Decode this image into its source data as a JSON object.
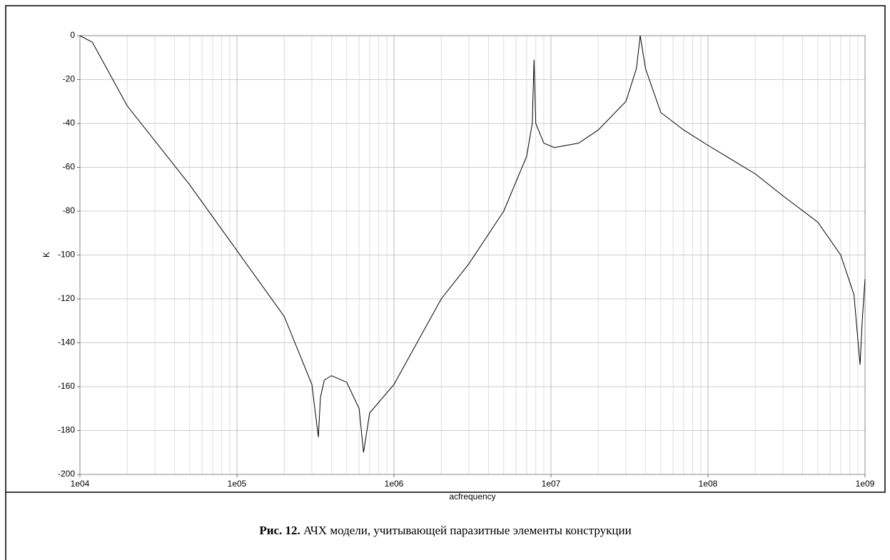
{
  "chart_data": {
    "type": "line",
    "log_x": true,
    "grid": true,
    "minor_grid": true,
    "xlabel": "acfrequency",
    "ylabel": "K",
    "caption": {
      "label": "Рис. 12.",
      "text": "АЧХ модели, учитывающей паразитные элементы конструкции"
    },
    "xlim": [
      10000,
      1000000000
    ],
    "xticks": [
      {
        "value": 10000,
        "label": "1e04"
      },
      {
        "value": 100000,
        "label": "1e05"
      },
      {
        "value": 1000000,
        "label": "1e06"
      },
      {
        "value": 10000000,
        "label": "1e07"
      },
      {
        "value": 100000000,
        "label": "1e08"
      },
      {
        "value": 1000000000,
        "label": "1e09"
      }
    ],
    "ylim": [
      -200,
      0
    ],
    "yticks": [
      0,
      -20,
      -40,
      -60,
      -80,
      -100,
      -120,
      -140,
      -160,
      -180,
      -200
    ],
    "series": [
      {
        "name": "K",
        "color": "#000000",
        "x": [
          10000,
          12000,
          20000,
          50000,
          100000,
          200000,
          300000,
          330000,
          340000,
          360000,
          400000,
          500000,
          600000,
          640000,
          700000,
          1000000,
          2000000,
          3000000,
          5000000,
          7000000,
          7600000,
          7800000,
          8000000,
          9000000,
          10500000,
          15000000,
          20000000,
          30000000,
          35000000,
          37000000,
          40000000,
          50000000,
          70000000,
          100000000,
          200000000,
          300000000,
          500000000,
          700000000,
          850000000,
          930000000,
          960000000,
          1000000000
        ],
        "values": [
          0,
          -3,
          -32,
          -68,
          -98,
          -128,
          -159,
          -183,
          -165,
          -157,
          -155,
          -158,
          -170,
          -190,
          -172,
          -159,
          -120,
          -104,
          -80,
          -55,
          -40,
          -11,
          -40,
          -49,
          -51,
          -49,
          -43,
          -30,
          -15,
          0,
          -15,
          -35,
          -43,
          -50,
          -63,
          -73,
          -85,
          -100,
          -118,
          -150,
          -130,
          -111
        ]
      }
    ]
  }
}
